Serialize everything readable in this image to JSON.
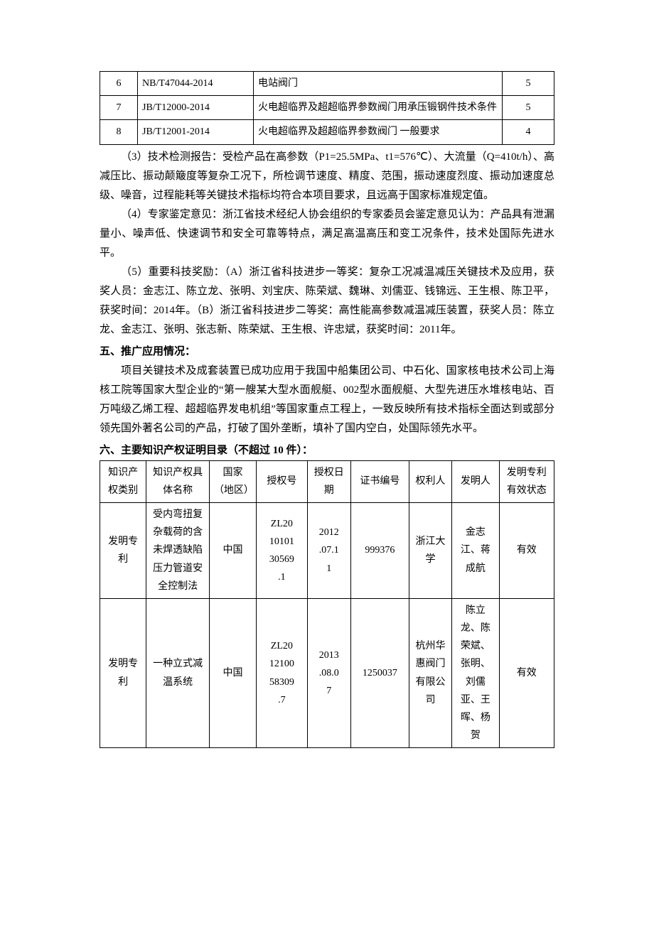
{
  "standards_table": {
    "rows": [
      {
        "num": "6",
        "code": "NB/T47044-2014",
        "name": "电站阀门",
        "count": "5"
      },
      {
        "num": "7",
        "code": "JB/T12000-2014",
        "name": "火电超临界及超超临界参数阀门用承压锻钢件技术条件",
        "count": "5"
      },
      {
        "num": "8",
        "code": "JB/T12001-2014",
        "name": "火电超临界及超超临界参数阀门 一般要求",
        "count": "4"
      }
    ]
  },
  "paragraphs": {
    "p3": "（3）技术检测报告：受检产品在高参数（P1=25.5MPa、t1=576℃）、大流量（Q=410t/h）、高减压比、振动颠簸度等复杂工况下，所检调节速度、精度、范围，振动速度烈度、振动加速度总级、噪音，过程能耗等关键技术指标均符合本项目要求，且远高于国家标准规定值。",
    "p4": "（4）专家鉴定意见：浙江省技术经纪人协会组织的专家委员会鉴定意见认为：产品具有泄漏量小、噪声低、快速调节和安全可靠等特点，满足高温高压和变工况条件，技术处国际先进水平。",
    "p5": "（5）重要科技奖励：（A）浙江省科技进步一等奖：复杂工况减温减压关键技术及应用，获奖人员：金志江、陈立龙、张明、刘宝庆、陈荣斌、魏琳、刘儒亚、钱锦远、王生根、陈卫平，获奖时间：2014年。（B）浙江省科技进步二等奖：高性能高参数减温减压装置，获奖人员：陈立龙、金志江、张明、张志新、陈荣斌、王生根、许忠斌，获奖时间：2011年。"
  },
  "section5": {
    "title": "五、推广应用情况：",
    "body": "项目关键技术及成套装置已成功应用于我国中船集团公司、中石化、国家核电技术公司上海核工院等国家大型企业的“第一艘某大型水面舰艇、002型水面舰艇、大型先进压水堆核电站、百万吨级乙烯工程、超超临界发电机组”等国家重点工程上，一致反映所有技术指标全面达到或部分领先国外著名公司的产品，打破了国外垄断，填补了国内空白，处国际领先水平。"
  },
  "section6": {
    "title": "六、主要知识产权证明目录（不超过 10 件）：",
    "headers": [
      "知识产权类别",
      "知识产权具体名称",
      "国家（地区）",
      "授权号",
      "授权日期",
      "证书编号",
      "权利人",
      "发明人",
      "发明专利有效状态"
    ],
    "rows": [
      {
        "type": "发明专利",
        "name": "受内弯扭复杂载荷的含未焊透缺陷压力管道安全控制法",
        "country": "中国",
        "authno": "ZL20\n10101\n30569\n.1",
        "date": "2012\n.07.1\n1",
        "certno": "999376",
        "holder": "浙江大学",
        "inventors": "金志江、蒋成航",
        "status": "有效"
      },
      {
        "type": "发明专利",
        "name": "一种立式减温系统",
        "country": "中国",
        "authno": "ZL20\n12100\n58309\n.7",
        "date": "2013\n.08.0\n7",
        "certno": "1250037",
        "holder": "杭州华惠阀门有限公司",
        "inventors": "陈立龙、陈荣斌、张明、刘儒亚、王晖、杨贺",
        "status": "有效"
      }
    ]
  }
}
